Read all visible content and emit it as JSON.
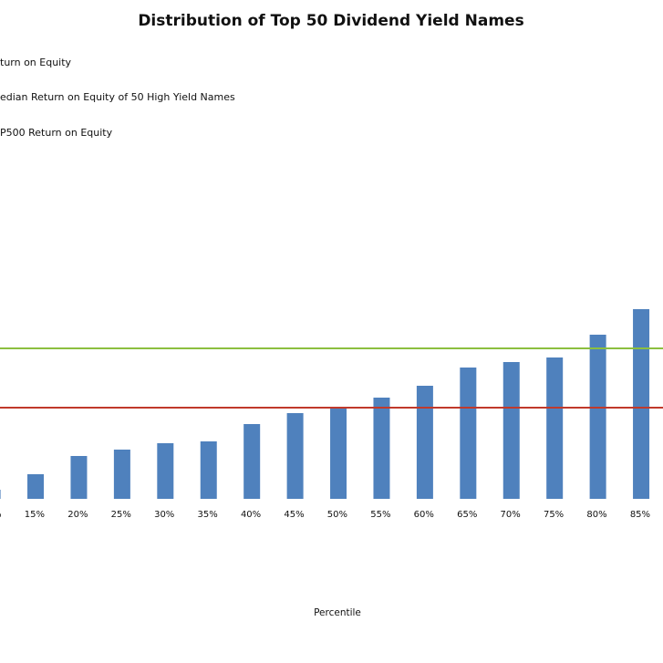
{
  "chart_data": {
    "type": "bar",
    "title": "Distribution of Top 50 Dividend Yield Names",
    "x_label": "Percentile",
    "categories": [
      "%",
      "15%",
      "20%",
      "25%",
      "30%",
      "35%",
      "40%",
      "45%",
      "50%",
      "55%",
      "60%",
      "65%",
      "70%",
      "75%",
      "80%",
      "85%"
    ],
    "series": [
      {
        "name": "turn on Equity",
        "color": "#4f81bd",
        "values": [
          10,
          27,
          47,
          54,
          61,
          63,
          82,
          94,
          100,
          111,
          124,
          144,
          150,
          155,
          180,
          208
        ]
      }
    ],
    "reference_lines": [
      {
        "name": "edian Return on Equity of 50 High Yield Names",
        "color": "#c0392b",
        "value": 100
      },
      {
        "name": "P500 Return on Equity",
        "color": "#8cbf3f",
        "value": 165
      }
    ],
    "ylim": [
      0,
      220
    ]
  }
}
